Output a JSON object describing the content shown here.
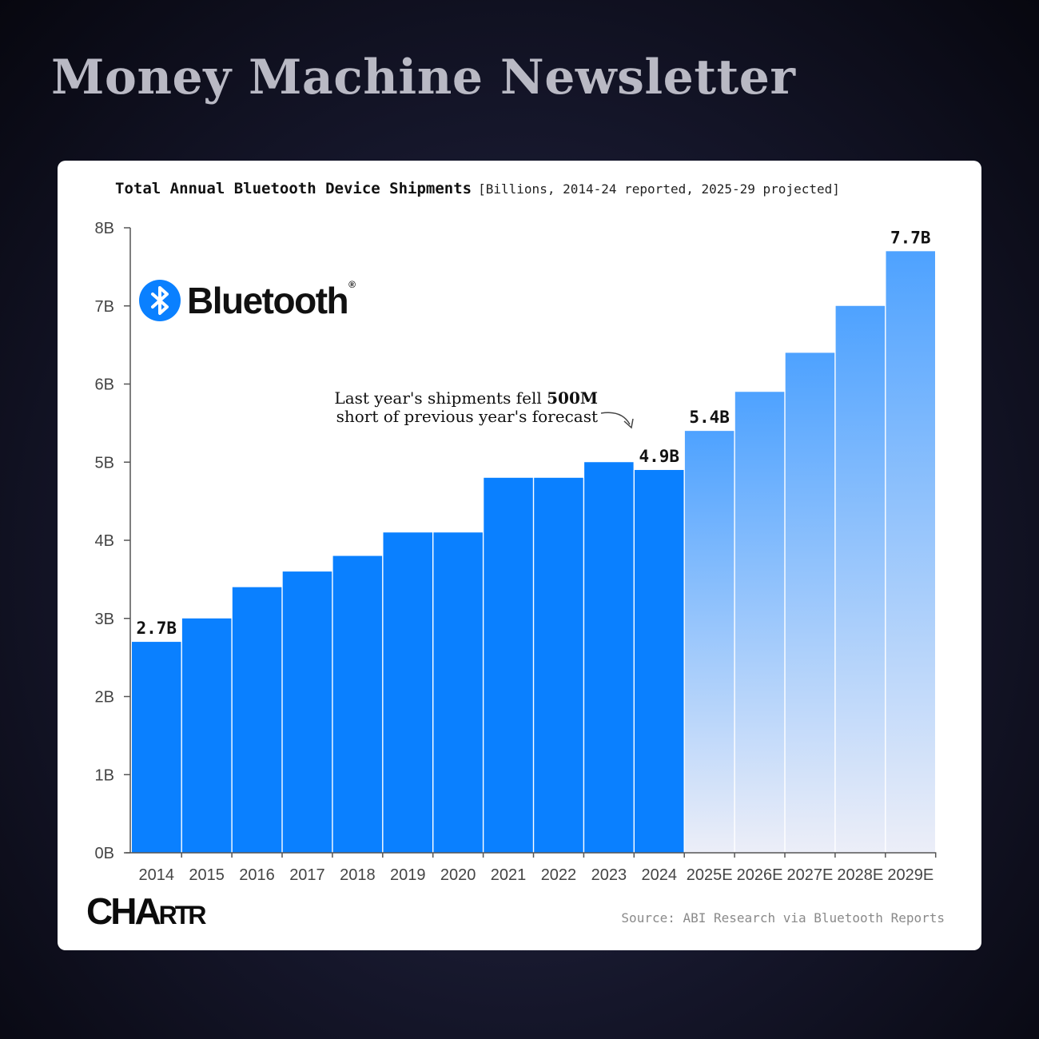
{
  "header": {
    "title": "Money Machine Newsletter"
  },
  "card": {
    "title": "Total Annual Bluetooth Device Shipments",
    "subtitle": "[Billions, 2014-24 reported, 2025-29 projected]",
    "logo_text": "Bluetooth",
    "logo_mark": "®",
    "annotation_line1": "Last year's shipments fell ",
    "annotation_bold": "500M",
    "annotation_line2": "short of previous year's forecast",
    "brand_ch": "CHA",
    "brand_rtr": "RTR",
    "source": "Source: ABI Research via Bluetooth Reports"
  },
  "colors": {
    "reported_bar": "#0a80ff",
    "projected_top": "#4ea2ff",
    "projected_bottom": "#eceef8",
    "axis": "#555555"
  },
  "chart_data": {
    "type": "bar",
    "categories": [
      "2014",
      "2015",
      "2016",
      "2017",
      "2018",
      "2019",
      "2020",
      "2021",
      "2022",
      "2023",
      "2024",
      "2025E",
      "2026E",
      "2027E",
      "2028E",
      "2029E"
    ],
    "values": [
      2.7,
      3.0,
      3.4,
      3.6,
      3.8,
      4.1,
      4.1,
      4.8,
      4.8,
      5.0,
      4.9,
      5.4,
      5.9,
      6.4,
      7.0,
      7.7
    ],
    "projected": [
      false,
      false,
      false,
      false,
      false,
      false,
      false,
      false,
      false,
      false,
      false,
      true,
      true,
      true,
      true,
      true
    ],
    "data_labels": {
      "0": "2.7B",
      "10": "4.9B",
      "11": "5.4B",
      "15": "7.7B"
    },
    "ylim": [
      0,
      8
    ],
    "yticks": [
      "0B",
      "1B",
      "2B",
      "3B",
      "4B",
      "5B",
      "6B",
      "7B",
      "8B"
    ],
    "title": "Total Annual Bluetooth Device Shipments",
    "subtitle": "[Billions, 2014-24 reported, 2025-29 projected]",
    "xlabel": "",
    "ylabel": "",
    "grid": false
  }
}
